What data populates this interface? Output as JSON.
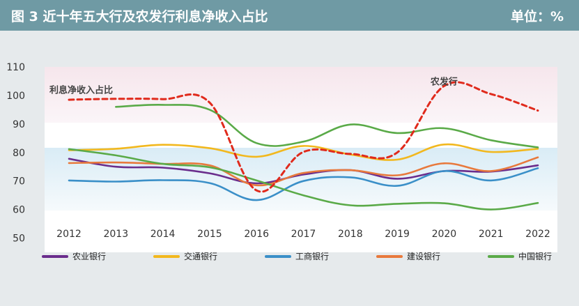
{
  "header": {
    "title": "图 3    近十年五大行及农发行利息净收入占比",
    "unit": "单位：%"
  },
  "chart_data": {
    "type": "line",
    "x": [
      2012,
      2013,
      2014,
      2015,
      2016,
      2017,
      2018,
      2019,
      2020,
      2021,
      2022
    ],
    "ylim": [
      45,
      110
    ],
    "yticks": [
      50,
      60,
      70,
      80,
      90,
      100,
      110
    ],
    "grid": false,
    "legend_position": "bottom",
    "annotations": [
      {
        "text": "利息净收入占比",
        "x": 2012,
        "y": 102
      },
      {
        "text": "农发行",
        "x": 2020,
        "y": 105
      }
    ],
    "series": [
      {
        "name": "农业银行",
        "color": "#6a2d8c",
        "dashed": false,
        "values": [
          77.8,
          75.0,
          74.7,
          72.7,
          69.2,
          72.3,
          73.8,
          70.8,
          73.5,
          73.3,
          75.5
        ]
      },
      {
        "name": "交通银行",
        "color": "#f2b81e",
        "dashed": false,
        "values": [
          80.8,
          81.3,
          82.7,
          81.5,
          78.5,
          82.3,
          79.3,
          77.5,
          82.8,
          80.2,
          81.3
        ]
      },
      {
        "name": "工商银行",
        "color": "#3a8fc8",
        "dashed": false,
        "values": [
          70.2,
          69.8,
          70.3,
          69.3,
          63.3,
          70.0,
          71.3,
          68.3,
          73.5,
          70.2,
          74.5
        ]
      },
      {
        "name": "建设银行",
        "color": "#e8793c",
        "dashed": false,
        "values": [
          76.3,
          76.5,
          76.0,
          75.5,
          68.5,
          72.8,
          73.8,
          72.0,
          76.2,
          73.5,
          78.3
        ]
      },
      {
        "name": "中国银行",
        "color": "#5aaa48",
        "dashed": false,
        "values": [
          81.2,
          79.0,
          76.0,
          74.8,
          70.2,
          65.0,
          61.5,
          62.0,
          62.2,
          60.0,
          62.3
        ]
      },
      {
        "name": "",
        "color": "#5aaa48",
        "dashed": false,
        "values": [
          null,
          96.0,
          96.7,
          95.0,
          83.3,
          83.8,
          89.8,
          86.8,
          88.5,
          84.3,
          81.8
        ]
      },
      {
        "name": "农发行",
        "color": "#e02a1c",
        "dashed": true,
        "values": [
          98.5,
          98.8,
          98.7,
          97.5,
          66.7,
          80.2,
          79.5,
          80.0,
          103.3,
          100.5,
          94.7
        ]
      }
    ]
  }
}
